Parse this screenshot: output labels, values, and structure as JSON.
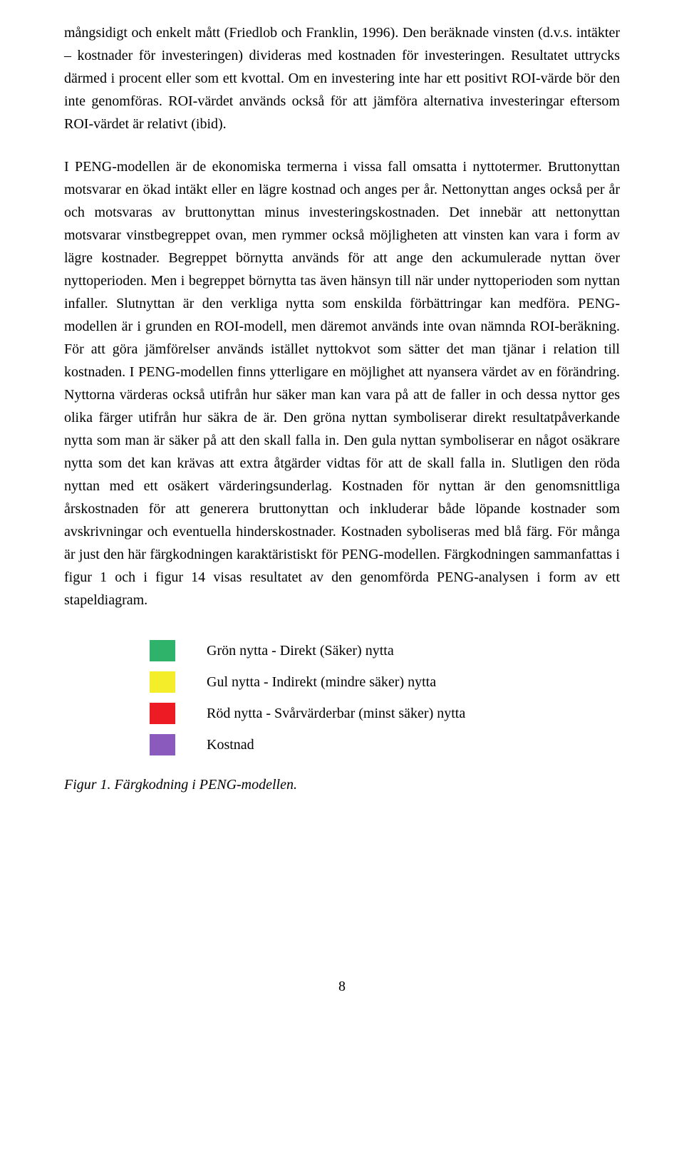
{
  "paragraphs": {
    "p1": "mångsidigt och enkelt mått (Friedlob och Franklin, 1996). Den beräknade vinsten (d.v.s. intäkter – kostnader för investeringen) divideras med kostnaden för investeringen. Resultatet uttrycks därmed i procent eller som ett kvottal. Om en investering inte har ett positivt ROI-värde bör den inte genomföras. ROI-värdet används också för att jämföra alternativa investeringar eftersom ROI-värdet är relativt (ibid).",
    "p2": "I PENG-modellen är de ekonomiska termerna i vissa fall omsatta i nyttotermer. Bruttonyttan motsvarar en ökad intäkt eller en lägre kostnad och anges per år. Nettonyttan anges också per år och motsvaras av bruttonyttan minus investeringskostnaden. Det innebär att nettonyttan motsvarar vinstbegreppet ovan, men rymmer också möjligheten att vinsten kan vara i form av lägre kostnader. Begreppet börnytta används för att ange den ackumulerade nyttan över nyttoperioden. Men i begreppet börnytta tas även hänsyn till när under nyttoperioden som nyttan infaller. Slutnyttan är den verkliga nytta som enskilda förbättringar kan medföra. PENG-modellen är i grunden en ROI-modell, men däremot används inte ovan nämnda ROI-beräkning. För att göra jämförelser används istället nyttokvot som sätter det man tjänar i relation till kostnaden. I PENG-modellen finns ytterligare en möjlighet att nyansera värdet av en förändring. Nyttorna värderas också utifrån hur säker man kan vara på att de faller in och dessa nyttor ges olika färger utifrån hur säkra de är. Den gröna nyttan symboliserar direkt resultatpåverkande nytta som man är säker på att den skall falla in. Den gula nyttan symboliserar en något osäkrare nytta som det kan krävas att extra åtgärder vidtas för att de skall falla in. Slutligen den röda nyttan med ett osäkert värderingsunderlag. Kostnaden för nyttan är den genomsnittliga årskostnaden för att generera bruttonyttan och inkluderar både löpande kostnader som avskrivningar och eventuella hinderskostnader. Kostnaden syboliseras med blå färg. För många är just den här färgkodningen karaktäristiskt för PENG-modellen. Färgkodningen sammanfattas i figur 1 och i figur 14 visas resultatet av den genomförda PENG-analysen i form av ett stapeldiagram."
  },
  "legend": {
    "items": [
      {
        "color": "#2fb36a",
        "label": "Grön nytta - Direkt (Säker) nytta"
      },
      {
        "color": "#f4ee2a",
        "label": "Gul nytta - Indirekt (mindre säker) nytta"
      },
      {
        "color": "#ed1c24",
        "label": "Röd nytta - Svårvärderbar  (minst säker) nytta"
      },
      {
        "color": "#8a5bbd",
        "label": "Kostnad"
      }
    ]
  },
  "caption": "Figur 1. Färgkodning i PENG-modellen.",
  "page_number": "8",
  "text_color": "#000000",
  "background_color": "#ffffff",
  "body_fontsize": 20
}
